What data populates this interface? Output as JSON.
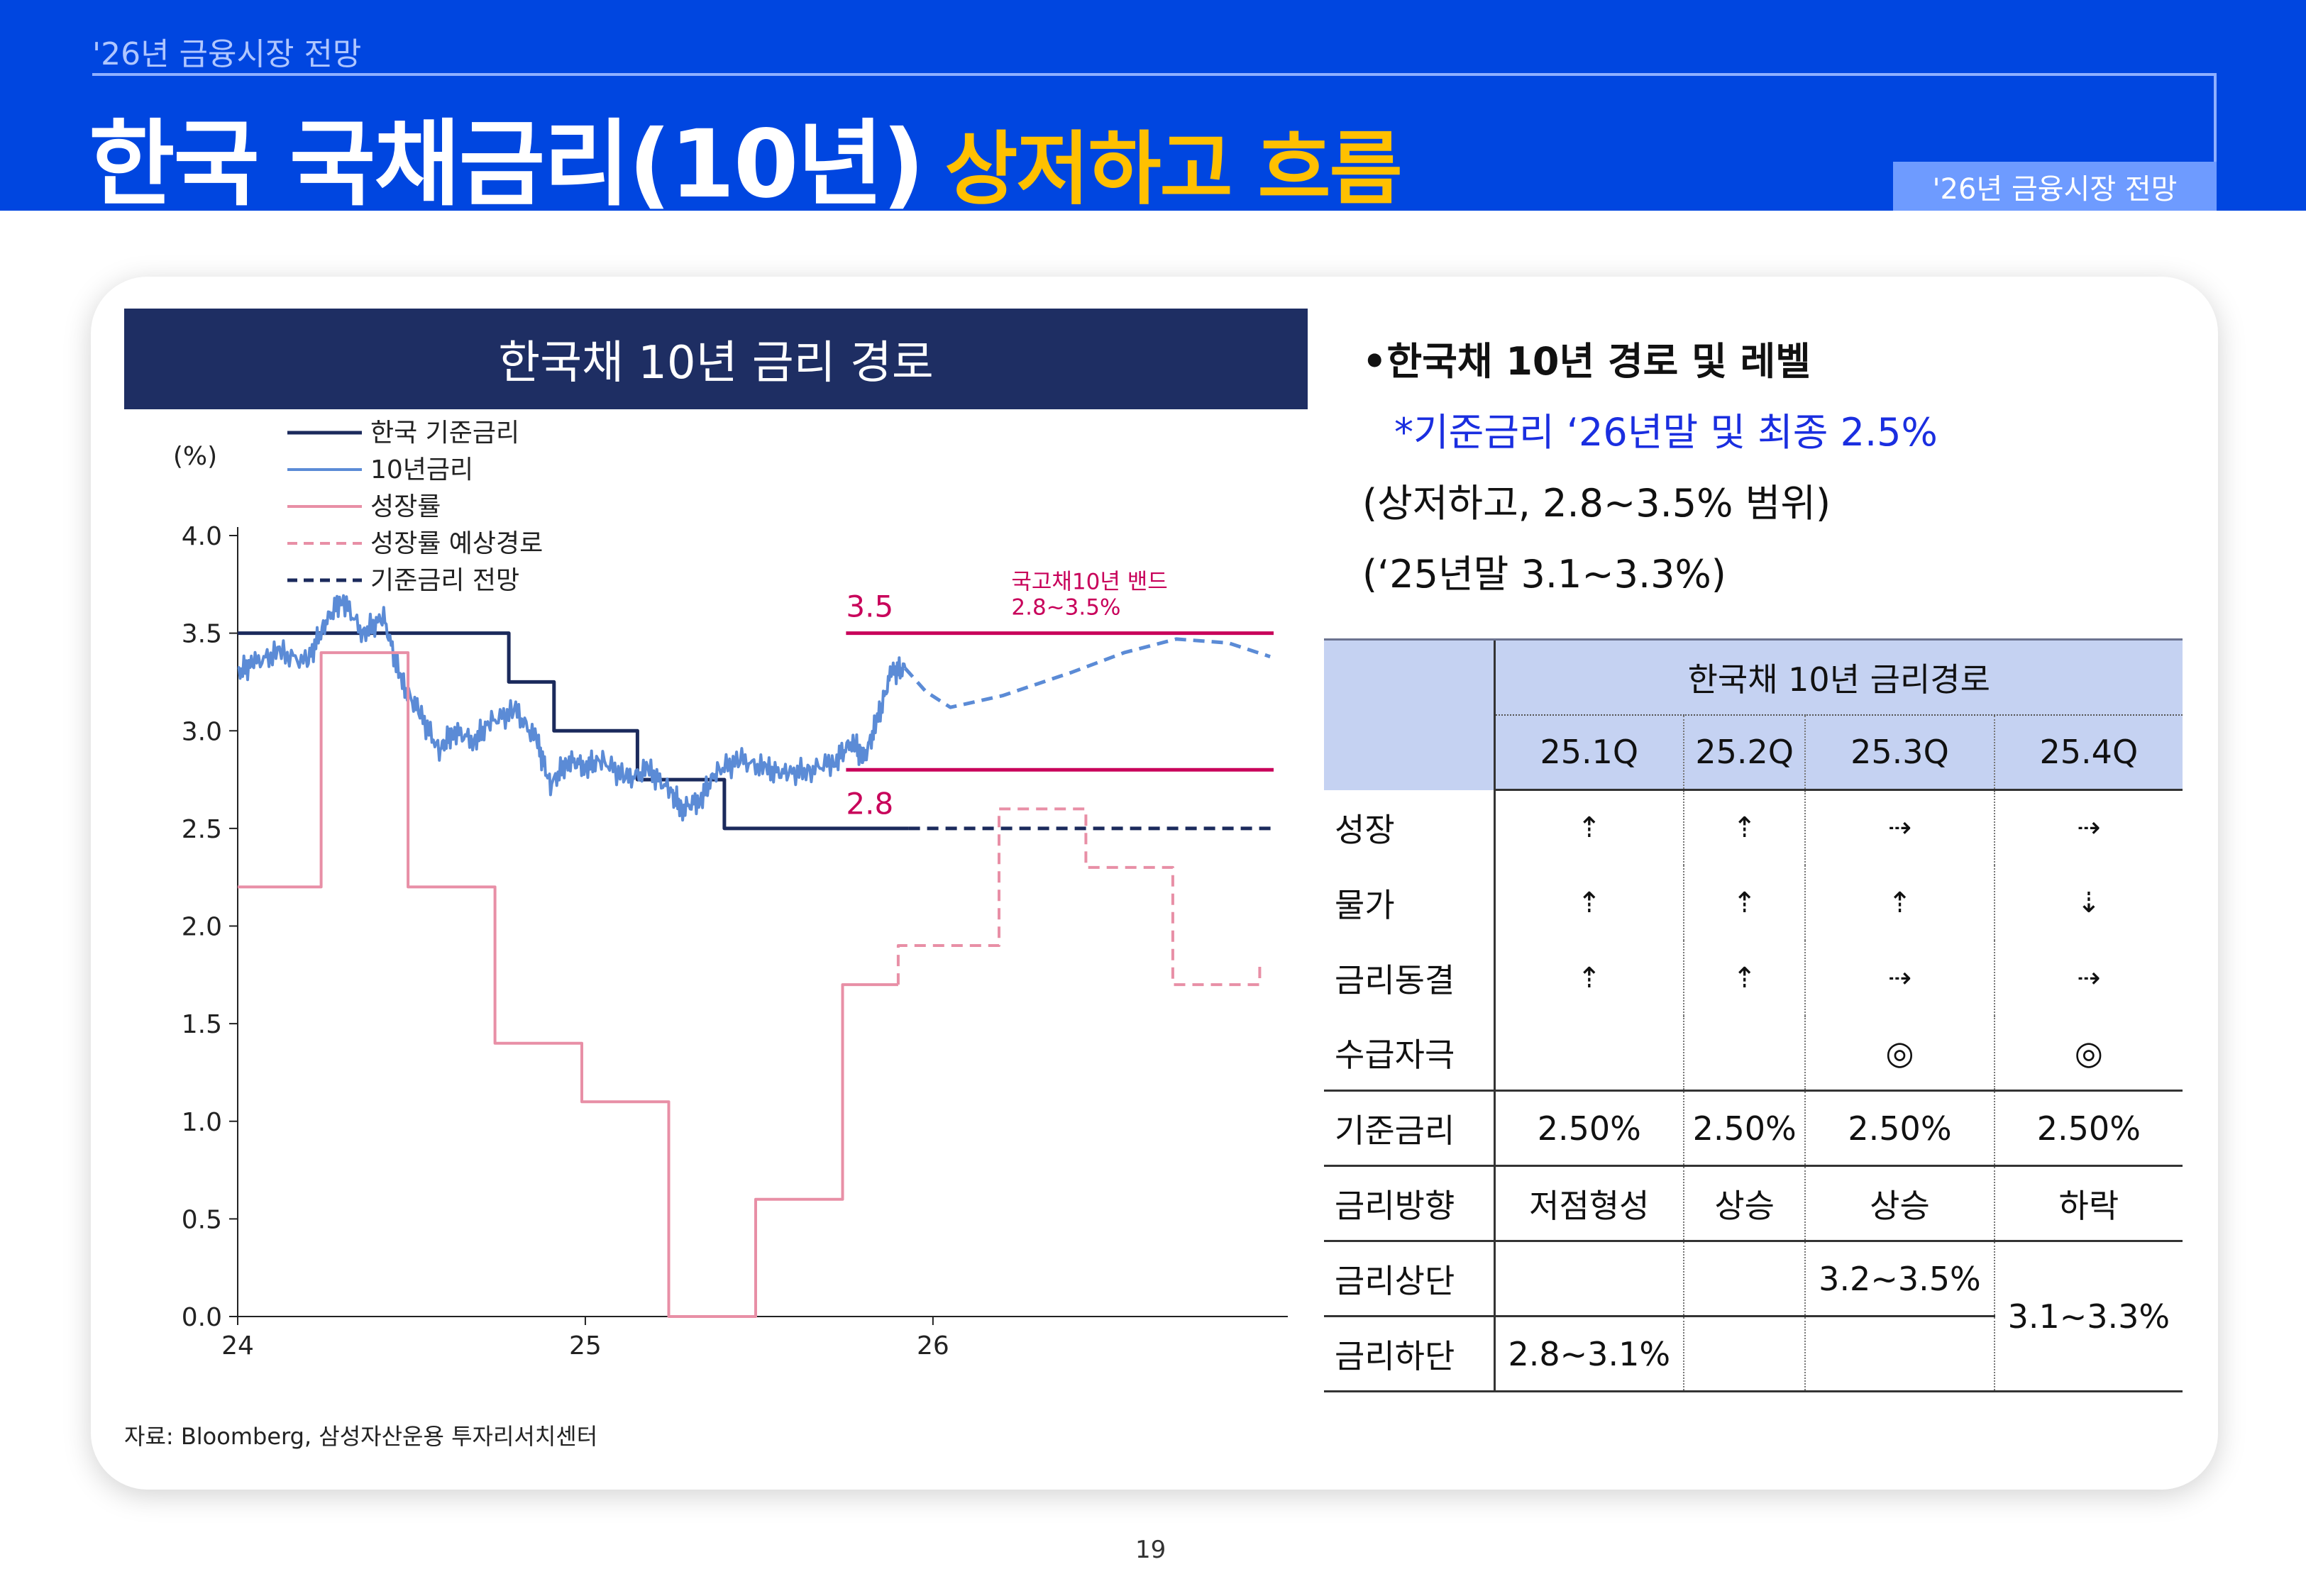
{
  "header": {
    "eyebrow": "'26년 금융시장 전망",
    "title_main": "한국 국채금리(10년)",
    "title_accent": "상저하고 흐름",
    "tag": "'26년 금융시장 전망"
  },
  "chart_panel_title": "한국채 10년 금리 경로",
  "source": "자료: Bloomberg, 삼성자산운용 투자리서치센터",
  "bullets": {
    "line1": "•한국채 10년 경로 및 레벨",
    "line2": "*기준금리 ‘26년말 및 최종 2.5%",
    "line3": "(상저하고, 2.8~3.5% 범위)",
    "line4": "(‘25년말 3.1~3.3%)"
  },
  "table": {
    "group_header": "한국채 10년 금리경로",
    "quarters": [
      "25.1Q",
      "25.2Q",
      "25.3Q",
      "25.4Q"
    ],
    "rows": {
      "growth": {
        "label": "성장",
        "cells": [
          "⇡",
          "⇡",
          "⇢",
          "⇢"
        ]
      },
      "inflation": {
        "label": "물가",
        "cells": [
          "⇡",
          "⇡",
          "⇡",
          "⇣"
        ]
      },
      "rate_hold": {
        "label": "금리동결",
        "cells": [
          "⇡",
          "⇡",
          "⇢",
          "⇢"
        ]
      },
      "supply": {
        "label": "수급자극",
        "cells": [
          "",
          "",
          "◎",
          "◎"
        ]
      },
      "base_rate": {
        "label": "기준금리",
        "cells": [
          "2.50%",
          "2.50%",
          "2.50%",
          "2.50%"
        ]
      },
      "direction": {
        "label": "금리방향",
        "cells": [
          "저점형성",
          "상승",
          "상승",
          "하락"
        ]
      },
      "upper": {
        "label": "금리상단",
        "cells": [
          "",
          "",
          "3.2~3.5%"
        ]
      },
      "lower": {
        "label": "금리하단",
        "cells": [
          "2.8~3.1%",
          "",
          ""
        ]
      },
      "merged_q4": "3.1~3.3%"
    }
  },
  "page_number": "19",
  "chart_data": {
    "type": "line",
    "title": "한국채 10년 금리 경로",
    "ylabel": "(%)",
    "ylim": [
      0,
      4.0
    ],
    "yticks": [
      "0.0",
      "0.5",
      "1.0",
      "1.5",
      "2.0",
      "2.5",
      "3.0",
      "3.5",
      "4.0"
    ],
    "xlim": [
      2024.0,
      2026.98
    ],
    "xticks": [
      {
        "value": 2024,
        "label": "24"
      },
      {
        "value": 2025,
        "label": "25"
      },
      {
        "value": 2026,
        "label": "26"
      }
    ],
    "colors": {
      "policy": "#1B2A5C",
      "yield": "#5B8BD6",
      "growth": "#E88FA6",
      "band": "#C8005A"
    },
    "band": {
      "upper": 3.5,
      "lower": 2.8,
      "x_start": 2025.75,
      "x_end": 2026.98,
      "upper_label": "3.5",
      "lower_label": "2.8",
      "note_line1": "국고채10년 밴드",
      "note_line2": "2.8~3.5%"
    },
    "series": [
      {
        "name": "한국 기준금리",
        "style": "solid",
        "x": [
          2024.0,
          2024.78,
          2024.78,
          2024.91,
          2024.91,
          2025.15,
          2025.15,
          2025.4,
          2025.4,
          2025.93
        ],
        "y": [
          3.5,
          3.5,
          3.25,
          3.25,
          3.0,
          3.0,
          2.75,
          2.75,
          2.5,
          2.5
        ]
      },
      {
        "name": "10년금리",
        "style": "solid",
        "x": [
          2024.0,
          2024.05,
          2024.12,
          2024.2,
          2024.25,
          2024.3,
          2024.36,
          2024.42,
          2024.47,
          2024.52,
          2024.58,
          2024.62,
          2024.68,
          2024.73,
          2024.8,
          2024.86,
          2024.9,
          2024.95,
          2025.0,
          2025.05,
          2025.12,
          2025.18,
          2025.24,
          2025.28,
          2025.33,
          2025.38,
          2025.45,
          2025.52,
          2025.58,
          2025.65,
          2025.72,
          2025.77,
          2025.8,
          2025.84,
          2025.88,
          2025.92
        ],
        "y": [
          3.3,
          3.35,
          3.4,
          3.35,
          3.55,
          3.68,
          3.5,
          3.58,
          3.25,
          3.1,
          2.9,
          3.0,
          2.95,
          3.05,
          3.1,
          2.95,
          2.72,
          2.85,
          2.82,
          2.85,
          2.75,
          2.8,
          2.7,
          2.6,
          2.65,
          2.8,
          2.85,
          2.8,
          2.78,
          2.8,
          2.85,
          2.95,
          2.85,
          3.05,
          3.3,
          3.32
        ]
      },
      {
        "name": "성장률",
        "style": "solid",
        "x": [
          2024.0,
          2024.24,
          2024.24,
          2024.49,
          2024.49,
          2024.74,
          2024.74,
          2024.99,
          2024.99,
          2025.24,
          2025.24,
          2025.49,
          2025.49,
          2025.74,
          2025.74,
          2025.9
        ],
        "y": [
          2.2,
          2.2,
          3.4,
          3.4,
          2.2,
          2.2,
          1.4,
          1.4,
          1.1,
          1.1,
          0.0,
          0.0,
          0.6,
          0.6,
          1.7,
          1.7
        ]
      },
      {
        "name": "성장률 예상경로",
        "style": "dashed",
        "x": [
          2025.9,
          2025.9,
          2026.19,
          2026.19,
          2026.44,
          2026.44,
          2026.69,
          2026.69,
          2026.94,
          2026.94
        ],
        "y": [
          1.7,
          1.9,
          1.9,
          2.6,
          2.6,
          2.3,
          2.3,
          1.7,
          1.7,
          1.8
        ]
      },
      {
        "name": "기준금리 전망",
        "style": "dashed",
        "x": [
          2025.93,
          2026.98
        ],
        "y": [
          2.5,
          2.5
        ]
      },
      {
        "name": "",
        "style": "dashed",
        "x": [
          2025.92,
          2025.98,
          2026.05,
          2026.2,
          2026.4,
          2026.55,
          2026.7,
          2026.85,
          2026.97
        ],
        "y": [
          3.32,
          3.2,
          3.12,
          3.18,
          3.3,
          3.4,
          3.47,
          3.45,
          3.38
        ]
      }
    ]
  }
}
